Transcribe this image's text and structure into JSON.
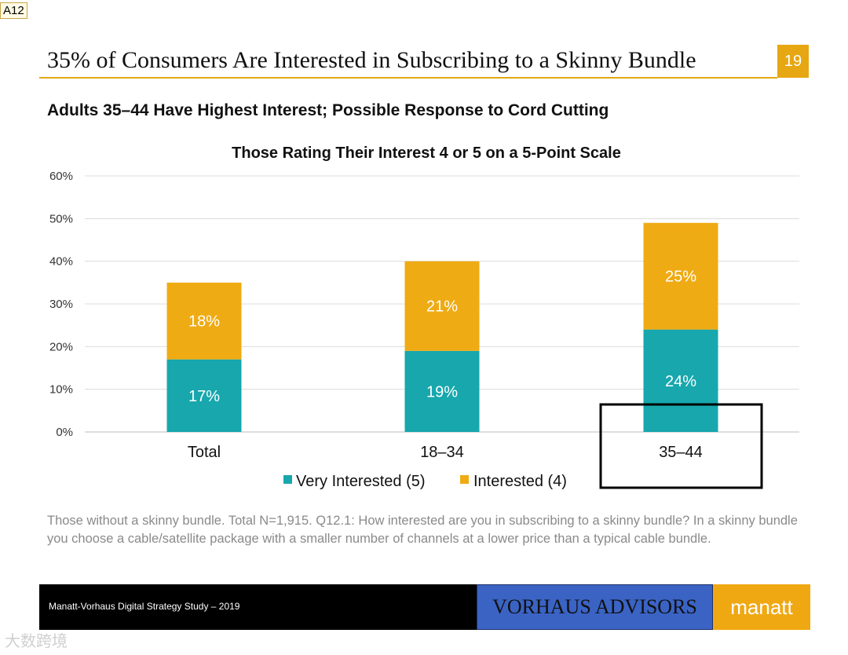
{
  "corner_tag": "A12",
  "header": {
    "title": "35% of Consumers Are Interested in Subscribing to a Skinny Bundle",
    "page_number": "19",
    "accent_color": "#e6a712"
  },
  "subtitle": "Adults 35–44 Have Highest Interest; Possible Response to Cord Cutting",
  "chart_data": {
    "type": "bar",
    "stacked": true,
    "title": "Those Rating Their Interest 4 or 5 on a 5-Point Scale",
    "categories": [
      "Total",
      "18–34",
      "35–44"
    ],
    "series": [
      {
        "name": "Very Interested (5)",
        "values": [
          17,
          19,
          24
        ],
        "labels": [
          "17%",
          "19%",
          "24%"
        ],
        "color": "#17a7ad"
      },
      {
        "name": "Interested (4)",
        "values": [
          18,
          21,
          25
        ],
        "labels": [
          "18%",
          "21%",
          "25%"
        ],
        "color": "#efab14"
      }
    ],
    "yticks": [
      0,
      10,
      20,
      30,
      40,
      50,
      60
    ],
    "ytick_labels": [
      "0%",
      "10%",
      "20%",
      "30%",
      "40%",
      "50%",
      "60%"
    ],
    "ylim": [
      0,
      60
    ],
    "grid": true,
    "legend": "bottom",
    "highlight_category": "35–44"
  },
  "note": "Those without a skinny bundle. Total N=1,915. Q12.1: How interested are you in subscribing to a skinny bundle? In a skinny bundle you choose a cable/satellite package with a smaller number of channels at a lower price than a typical cable bundle.",
  "footer": {
    "study": "Manatt-Vorhaus Digital Strategy Study – 2019",
    "vorhaus_logo": "VORHAUS ADVISORS",
    "manatt_logo": "manatt"
  },
  "watermark": "大数跨境"
}
